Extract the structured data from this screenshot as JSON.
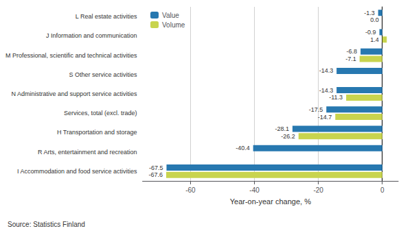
{
  "chart_data": {
    "type": "bar",
    "orientation": "horizontal",
    "categories": [
      "I Accommodation and food service activities",
      "R Arts, entertainment and recreation",
      "H Transportation and storage",
      "Services, total (excl. trade)",
      "N Administrative and support service activities",
      "S Other service activities",
      "M Professional, scientific and technical activities",
      "J Information and communication",
      "L Real estate activities"
    ],
    "series": [
      {
        "name": "Value",
        "color": "#2778b0",
        "values": [
          -67.5,
          -40.4,
          -28.1,
          -17.5,
          -14.3,
          -14.3,
          -6.8,
          -0.9,
          -1.3
        ]
      },
      {
        "name": "Volume",
        "color": "#c8d44e",
        "values": [
          -67.6,
          null,
          -26.2,
          -14.7,
          -11.3,
          null,
          -7.1,
          1.4,
          0.0
        ],
        "value_labels": [
          "-67.6",
          null,
          "-26.2",
          "-14.7",
          "-11.3",
          null,
          "-7.1",
          "1.4",
          "0.0"
        ]
      }
    ],
    "xlabel": "Year-on-year change, %",
    "xlim": [
      -75,
      5
    ],
    "xticks": [
      -60,
      -40,
      -20,
      0
    ],
    "grid": true,
    "legend": "upper left",
    "data_labels": true,
    "annotations": [
      "Source: Statistics Finland"
    ]
  }
}
